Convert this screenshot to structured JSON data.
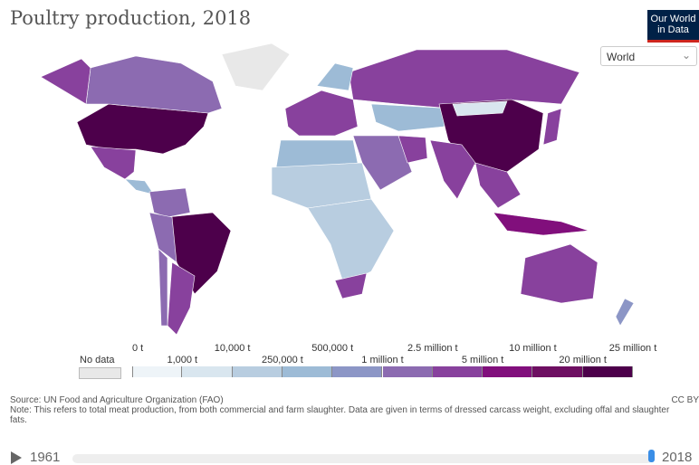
{
  "title": "Poultry production, 2018",
  "logo": {
    "line1": "Our World",
    "line2": "in Data"
  },
  "region_select": {
    "value": "World"
  },
  "legend": {
    "no_data": "No data",
    "no_data_color": "#e8e8e8",
    "breaks": [
      "0 t",
      "1,000 t",
      "10,000 t",
      "250,000 t",
      "500,000 t",
      "1 million t",
      "2.5 million t",
      "5 million t",
      "10 million t",
      "20 million t",
      "25 million t"
    ],
    "colors": [
      "#eef4f8",
      "#d9e6ef",
      "#b8cde0",
      "#9dbbd6",
      "#8c96c6",
      "#8c6bb1",
      "#88419d",
      "#810f7c",
      "#6e0f62",
      "#4d004b"
    ]
  },
  "map_regions": [
    {
      "name": "United States",
      "bin": 9
    },
    {
      "name": "Canada",
      "bin": 5
    },
    {
      "name": "Alaska",
      "bin": 6
    },
    {
      "name": "Greenland",
      "bin": -1
    },
    {
      "name": "Mexico",
      "bin": 6
    },
    {
      "name": "Central America",
      "bin": 3
    },
    {
      "name": "Brazil",
      "bin": 9
    },
    {
      "name": "Argentina",
      "bin": 6
    },
    {
      "name": "Colombia/Venezuela",
      "bin": 5
    },
    {
      "name": "Peru/Bolivia",
      "bin": 5
    },
    {
      "name": "Chile",
      "bin": 5
    },
    {
      "name": "Russia",
      "bin": 6
    },
    {
      "name": "Europe",
      "bin": 6
    },
    {
      "name": "Scandinavia",
      "bin": 3
    },
    {
      "name": "Kazakhstan/Central Asia",
      "bin": 3
    },
    {
      "name": "China",
      "bin": 9
    },
    {
      "name": "India",
      "bin": 6
    },
    {
      "name": "Middle East",
      "bin": 5
    },
    {
      "name": "North Africa",
      "bin": 3
    },
    {
      "name": "Sahara/Sahel",
      "bin": 2
    },
    {
      "name": "Central Africa",
      "bin": 2
    },
    {
      "name": "South Africa",
      "bin": 6
    },
    {
      "name": "Southeast Asia",
      "bin": 6
    },
    {
      "name": "Indonesia",
      "bin": 7
    },
    {
      "name": "Japan",
      "bin": 6
    },
    {
      "name": "Australia",
      "bin": 6
    },
    {
      "name": "New Zealand",
      "bin": 4
    },
    {
      "name": "Mongolia",
      "bin": 1
    },
    {
      "name": "Iran",
      "bin": 6
    }
  ],
  "source": "Source: UN Food and Agriculture Organization (FAO)",
  "note": "Note: This refers to total meat production, from both commercial and farm slaughter. Data are given in terms of dressed carcass weight, excluding offal and slaughter fats.",
  "license": "CC BY",
  "timeline": {
    "start": "1961",
    "end": "2018",
    "progress": 1.0
  }
}
